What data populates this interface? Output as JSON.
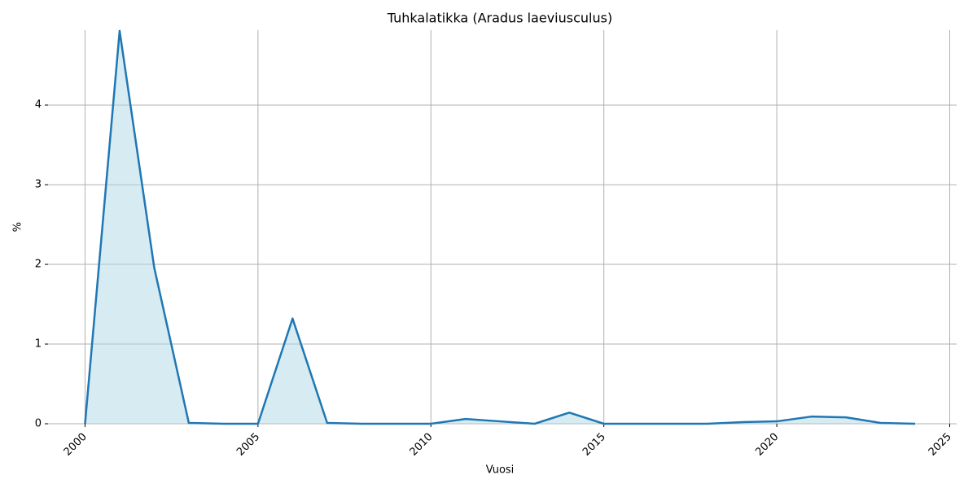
{
  "chart_data": {
    "type": "line",
    "title": "Tuhkalatikka (Aradus laeviusculus)",
    "x_label": "Vuosi",
    "y_label": "%",
    "x": [
      2000,
      2001,
      2002,
      2003,
      2004,
      2005,
      2006,
      2007,
      2008,
      2009,
      2010,
      2011,
      2012,
      2013,
      2014,
      2015,
      2016,
      2017,
      2018,
      2019,
      2020,
      2021,
      2022,
      2023,
      2024
    ],
    "values": [
      0,
      4.93,
      1.96,
      0.01,
      0,
      0,
      1.32,
      0.01,
      0,
      0,
      0,
      0.06,
      0.03,
      0,
      0.14,
      0,
      0,
      0,
      0,
      0.02,
      0.03,
      0.09,
      0.08,
      0.01,
      0
    ],
    "color": "#1f77b4",
    "fill_color": "#add8e6",
    "xlim": [
      1998.93,
      2025.2
    ],
    "ylim": [
      0,
      4.94
    ],
    "xticks": [
      2000,
      2005,
      2010,
      2015,
      2020,
      2025
    ],
    "yticks": [
      0,
      1,
      2,
      3,
      4
    ],
    "grid": true
  }
}
